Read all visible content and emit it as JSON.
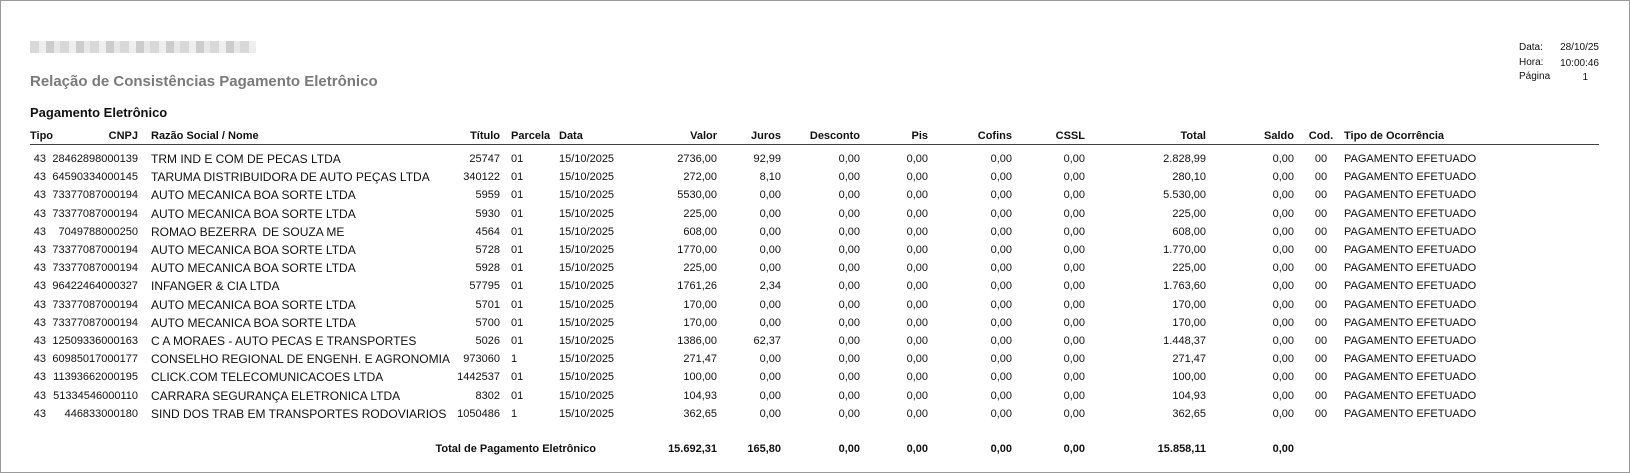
{
  "header": {
    "title": "Relação de Consistências Pagamento Eletrônico",
    "date_label": "Data:",
    "date": "28/10/25",
    "time_label": "Hora:",
    "time": "10:00:46",
    "page_label": "Página",
    "page": "1"
  },
  "section": "Pagamento Eletrônico",
  "table": {
    "columns": [
      "Tipo",
      "CNPJ",
      "Razão Social / Nome",
      "Título",
      "Parcela",
      "Data",
      "Valor",
      "Juros",
      "Desconto",
      "Pis",
      "Cofins",
      "CSSL",
      "Total",
      "Saldo",
      "Cod.",
      "Tipo de Ocorrência"
    ],
    "rows": [
      [
        "43",
        "28462898000139",
        "TRM IND E COM DE PECAS LTDA",
        "25747",
        "01",
        "15/10/2025",
        "2736,00",
        "92,99",
        "0,00",
        "0,00",
        "0,00",
        "0,00",
        "2.828,99",
        "0,00",
        "00",
        "PAGAMENTO EFETUADO"
      ],
      [
        "43",
        "64590334000145",
        "TARUMA DISTRIBUIDORA DE AUTO PEÇAS LTDA",
        "340122",
        "01",
        "15/10/2025",
        "272,00",
        "8,10",
        "0,00",
        "0,00",
        "0,00",
        "0,00",
        "280,10",
        "0,00",
        "00",
        "PAGAMENTO EFETUADO"
      ],
      [
        "43",
        "73377087000194",
        "AUTO MECANICA BOA SORTE LTDA",
        "5959",
        "01",
        "15/10/2025",
        "5530,00",
        "0,00",
        "0,00",
        "0,00",
        "0,00",
        "0,00",
        "5.530,00",
        "0,00",
        "00",
        "PAGAMENTO EFETUADO"
      ],
      [
        "43",
        "73377087000194",
        "AUTO MECANICA BOA SORTE LTDA",
        "5930",
        "01",
        "15/10/2025",
        "225,00",
        "0,00",
        "0,00",
        "0,00",
        "0,00",
        "0,00",
        "225,00",
        "0,00",
        "00",
        "PAGAMENTO EFETUADO"
      ],
      [
        "43",
        "7049788000250",
        "ROMAO BEZERRA  DE SOUZA ME",
        "4564",
        "01",
        "15/10/2025",
        "608,00",
        "0,00",
        "0,00",
        "0,00",
        "0,00",
        "0,00",
        "608,00",
        "0,00",
        "00",
        "PAGAMENTO EFETUADO"
      ],
      [
        "43",
        "73377087000194",
        "AUTO MECANICA BOA SORTE LTDA",
        "5728",
        "01",
        "15/10/2025",
        "1770,00",
        "0,00",
        "0,00",
        "0,00",
        "0,00",
        "0,00",
        "1.770,00",
        "0,00",
        "00",
        "PAGAMENTO EFETUADO"
      ],
      [
        "43",
        "73377087000194",
        "AUTO MECANICA BOA SORTE LTDA",
        "5928",
        "01",
        "15/10/2025",
        "225,00",
        "0,00",
        "0,00",
        "0,00",
        "0,00",
        "0,00",
        "225,00",
        "0,00",
        "00",
        "PAGAMENTO EFETUADO"
      ],
      [
        "43",
        "96422464000327",
        "INFANGER & CIA LTDA",
        "57795",
        "01",
        "15/10/2025",
        "1761,26",
        "2,34",
        "0,00",
        "0,00",
        "0,00",
        "0,00",
        "1.763,60",
        "0,00",
        "00",
        "PAGAMENTO EFETUADO"
      ],
      [
        "43",
        "73377087000194",
        "AUTO MECANICA BOA SORTE LTDA",
        "5701",
        "01",
        "15/10/2025",
        "170,00",
        "0,00",
        "0,00",
        "0,00",
        "0,00",
        "0,00",
        "170,00",
        "0,00",
        "00",
        "PAGAMENTO EFETUADO"
      ],
      [
        "43",
        "73377087000194",
        "AUTO MECANICA BOA SORTE LTDA",
        "5700",
        "01",
        "15/10/2025",
        "170,00",
        "0,00",
        "0,00",
        "0,00",
        "0,00",
        "0,00",
        "170,00",
        "0,00",
        "00",
        "PAGAMENTO EFETUADO"
      ],
      [
        "43",
        "12509336000163",
        "C A MORAES - AUTO PECAS E TRANSPORTES",
        "5026",
        "01",
        "15/10/2025",
        "1386,00",
        "62,37",
        "0,00",
        "0,00",
        "0,00",
        "0,00",
        "1.448,37",
        "0,00",
        "00",
        "PAGAMENTO EFETUADO"
      ],
      [
        "43",
        "60985017000177",
        "CONSELHO REGIONAL DE ENGENH. E AGRONOMIA",
        "973060",
        "1",
        "15/10/2025",
        "271,47",
        "0,00",
        "0,00",
        "0,00",
        "0,00",
        "0,00",
        "271,47",
        "0,00",
        "00",
        "PAGAMENTO EFETUADO"
      ],
      [
        "43",
        "11393662000195",
        "CLICK.COM TELECOMUNICACOES LTDA",
        "1442537",
        "01",
        "15/10/2025",
        "100,00",
        "0,00",
        "0,00",
        "0,00",
        "0,00",
        "0,00",
        "100,00",
        "0,00",
        "00",
        "PAGAMENTO EFETUADO"
      ],
      [
        "43",
        "51334546000110",
        "CARRARA SEGURANÇA ELETRONICA LTDA",
        "8302",
        "01",
        "15/10/2025",
        "104,93",
        "0,00",
        "0,00",
        "0,00",
        "0,00",
        "0,00",
        "104,93",
        "0,00",
        "00",
        "PAGAMENTO EFETUADO"
      ],
      [
        "43",
        "446833000180",
        "SIND DOS TRAB EM TRANSPORTES RODOVIARIOS",
        "1050486",
        "1",
        "15/10/2025",
        "362,65",
        "0,00",
        "0,00",
        "0,00",
        "0,00",
        "0,00",
        "362,65",
        "0,00",
        "00",
        "PAGAMENTO EFETUADO"
      ]
    ],
    "totals": {
      "label": "Total de Pagamento Eletrônico",
      "values": [
        "15.692,31",
        "165,80",
        "0,00",
        "0,00",
        "0,00",
        "0,00",
        "15.858,11",
        "0,00"
      ]
    }
  }
}
